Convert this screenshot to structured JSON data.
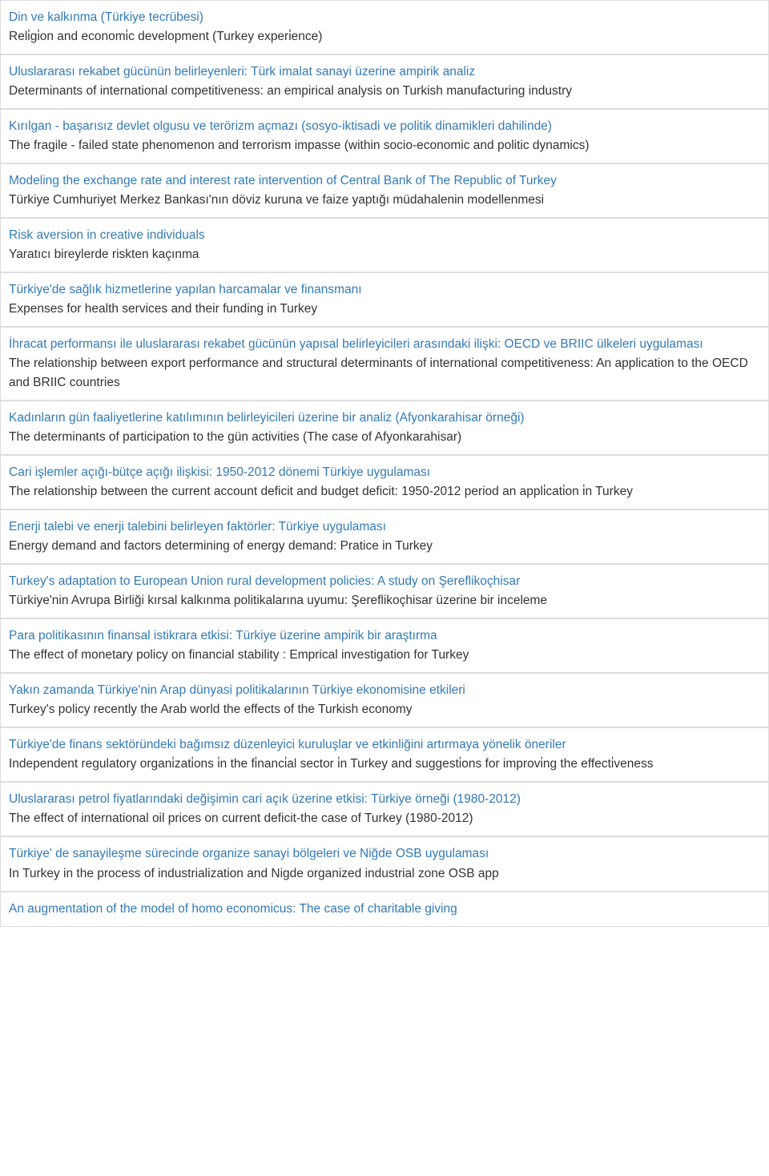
{
  "colors": {
    "border": "#dddddd",
    "link": "#337ab7",
    "text": "#333333",
    "background": "#ffffff"
  },
  "typography": {
    "font_family": "Verdana, Geneva, Tahoma, sans-serif",
    "font_size_pt": 12,
    "line_height": 1.55
  },
  "rows": [
    {
      "title": "Din ve kalkınma (Türkiye tecrübesi)",
      "subtitle": "Reli̇gi̇on and economi̇c development (Turkey experi̇ence)"
    },
    {
      "title": "Uluslararası rekabet gücünün belirleyenleri: Türk imalat sanayi üzerine ampirik analiz",
      "subtitle": "Determinants of international competitiveness: an empirical analysis on Turkish manufacturing industry"
    },
    {
      "title": "Kırılgan - başarısız devlet olgusu ve terörizm açmazı (sosyo-iktisadi ve politik dinamikleri dahilinde)",
      "subtitle": "The fragile - failed state phenomenon and terrorism impasse (within socio-economic and politic dynamics)"
    },
    {
      "title": "Modeling the exchange rate and interest rate intervention of Central Bank of The Republic of Turkey",
      "subtitle": "Türkiye Cumhuriyet Merkez Bankası'nın döviz kuruna ve faize yaptığı müdahalenin modellenmesi"
    },
    {
      "title": "Risk aversion in creative individuals",
      "subtitle": "Yaratıcı bireylerde riskten kaçınma"
    },
    {
      "title": "Türkiye'de sağlık hizmetlerine yapılan harcamalar ve finansmanı",
      "subtitle": "Expenses for health services and their funding in Turkey"
    },
    {
      "title": "İhracat performansı ile uluslararası rekabet gücünün yapısal belirleyicileri arasındaki ilişki: OECD ve BRIIC ülkeleri uygulaması",
      "subtitle": "The relationship between export performance and structural determinants of international competitiveness: An application to the OECD and BRIIC countries"
    },
    {
      "title": "Kadınların gün faaliyetlerine katılımının belirleyicileri üzerine bir analiz (Afyonkarahisar örneği)",
      "subtitle": "The determinants of participation to the gün activities (The case of Afyonkarahisar)"
    },
    {
      "title": "Cari işlemler açığı-bütçe açığı ilişkisi: 1950-2012 dönemi Türkiye uygulaması",
      "subtitle": "The relationship between the current account deficit and budget deficit: 1950-2012 period an appli̇cati̇on i̇n Turkey"
    },
    {
      "title": "Enerji talebi ve enerji talebini belirleyen faktörler: Türkiye uygulaması",
      "subtitle": "Energy demand and factors determining of energy demand: Pratice in Turkey"
    },
    {
      "title": "Turkey's adaptation to European Union rural development policies: A study on Şereflikoçhisar",
      "subtitle": "Türkiye'nin Avrupa Birliği kırsal kalkınma politikalarına uyumu: Şereflikoçhisar üzerine bir inceleme"
    },
    {
      "title": "Para politikasının finansal istikrara etkisi: Türkiye üzerine ampirik bir araştırma",
      "subtitle": "The effect of monetary policy on financial stability : Emprical investigation for Turkey"
    },
    {
      "title": "Yakın zamanda Türkiye'nin Arap dünyasi politikalarının Türkiye ekonomisine etkileri",
      "subtitle": "Turkey's policy recently the Arab world the effects of the Turkish economy"
    },
    {
      "title": "Türkiye'de finans sektöründeki bağımsız düzenleyici kuruluşlar ve etkinliğini artırmaya yönelik öneriler",
      "subtitle": "Independent regulatory organi̇zati̇ons i̇n the fi̇nanci̇al sector i̇n Turkey and suggesti̇ons for improvi̇ng the effecti̇veness"
    },
    {
      "title": "Uluslararası petrol fiyatlarındaki değişimin cari açık üzerine etkisi: Türkiye örneği (1980-2012)",
      "subtitle": "The effect of international oil prices on current deficit-the case of Turkey (1980-2012)"
    },
    {
      "title": "Türkiye' de sanayileşme sürecinde organize sanayi bölgeleri ve Niğde OSB uygulaması",
      "subtitle": "In Turkey in the process of industrialization and Nigde organized industrial zone OSB app"
    },
    {
      "title": "An augmentation of the model of homo economicus: The case of charitable giving",
      "subtitle": ""
    }
  ]
}
